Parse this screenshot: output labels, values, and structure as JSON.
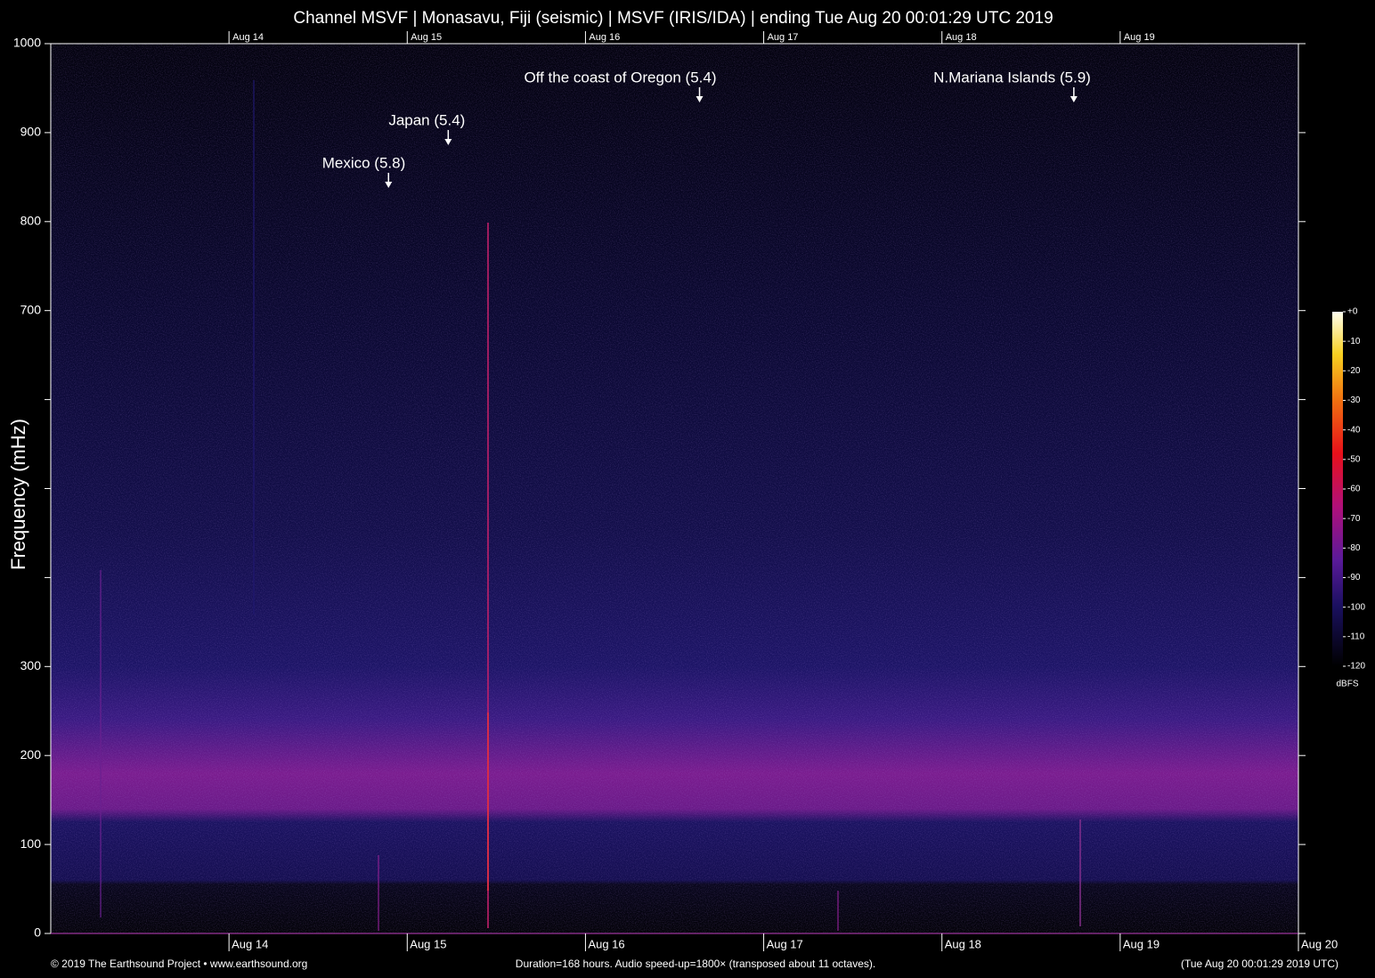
{
  "chart_data": {
    "type": "spectrogram",
    "title": "Channel MSVF | Monasavu, Fiji (seismic) | MSVF (IRIS/IDA) | ending Tue Aug 20 00:01:29 UTC 2019",
    "y_label": "Frequency (mHz)",
    "ylim": [
      0,
      1000
    ],
    "yticks": [
      0,
      100,
      200,
      300,
      700,
      800,
      900,
      1000
    ],
    "y_unlabeled_ticks": [
      400,
      500,
      600
    ],
    "xlim": [
      13,
      20
    ],
    "xticks": [
      {
        "value": 14,
        "label": "Aug 14"
      },
      {
        "value": 15,
        "label": "Aug 15"
      },
      {
        "value": 16,
        "label": "Aug 16"
      },
      {
        "value": 17,
        "label": "Aug 17"
      },
      {
        "value": 18,
        "label": "Aug 18"
      },
      {
        "value": 19,
        "label": "Aug 19"
      },
      {
        "value": 20,
        "label": "Aug 20"
      }
    ],
    "annotations": [
      {
        "text": "Mexico (5.8)",
        "x": 14.895
      },
      {
        "text": "Japan (5.4)",
        "x": 15.23
      },
      {
        "text": "Off the coast of Oregon (5.4)",
        "x": 16.64
      },
      {
        "text": "N.Mariana Islands (5.9)",
        "x": 18.74
      }
    ],
    "colorbar": {
      "label": "dBFS",
      "clim": [
        -120,
        0
      ],
      "ticks": [
        {
          "value": 0,
          "label": "+0"
        },
        -10,
        -20,
        -30,
        -40,
        -50,
        -60,
        -70,
        -80,
        -90,
        -100,
        -110,
        -120
      ]
    },
    "footer": {
      "left": "© 2019 The Earthsound Project • www.earthsound.org",
      "center": "Duration=168 hours. Audio speed-up=1800× (transposed about 11 octaves).",
      "right": "(Tue Aug 20 00:01:29 2019 UTC)"
    }
  }
}
